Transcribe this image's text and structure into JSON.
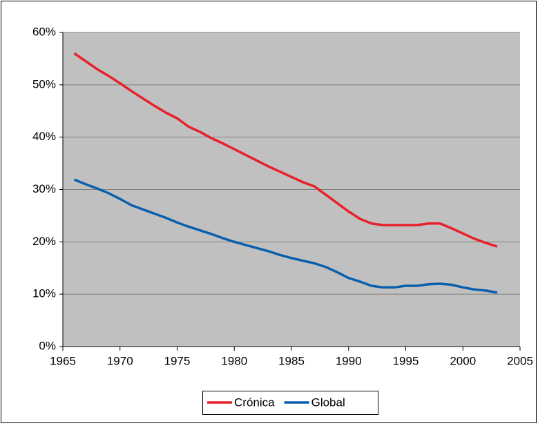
{
  "chart_data": {
    "type": "line",
    "x": [
      1966,
      1967,
      1968,
      1969,
      1970,
      1971,
      1972,
      1973,
      1974,
      1975,
      1976,
      1977,
      1978,
      1979,
      1980,
      1981,
      1982,
      1983,
      1984,
      1985,
      1986,
      1987,
      1988,
      1989,
      1990,
      1991,
      1992,
      1993,
      1994,
      1995,
      1996,
      1997,
      1998,
      1999,
      2000,
      2001,
      2002,
      2003
    ],
    "series": [
      {
        "name": "Crónica",
        "color": "#e8202a",
        "values": [
          56,
          54.5,
          53,
          51.7,
          50.3,
          48.8,
          47.4,
          46,
          44.7,
          43.6,
          42,
          41,
          39.8,
          38.8,
          37.7,
          36.6,
          35.5,
          34.4,
          33.4,
          32.4,
          31.4,
          30.6,
          29,
          27.4,
          25.8,
          24.4,
          23.5,
          23.2,
          23.2,
          23.2,
          23.2,
          23.5,
          23.5,
          22.6,
          21.6,
          20.6,
          19.8,
          19.1
        ]
      },
      {
        "name": "Global",
        "color": "#0a5fad",
        "values": [
          31.9,
          31,
          30.2,
          29.3,
          28.2,
          27,
          26.2,
          25.4,
          24.6,
          23.7,
          22.9,
          22.2,
          21.5,
          20.7,
          20,
          19.4,
          18.8,
          18.2,
          17.5,
          16.9,
          16.4,
          15.9,
          15.2,
          14.2,
          13.1,
          12.4,
          11.6,
          11.3,
          11.3,
          11.6,
          11.6,
          11.9,
          12,
          11.8,
          11.3,
          10.9,
          10.7,
          10.3
        ]
      }
    ],
    "xlim": [
      1965,
      2005
    ],
    "xticks": [
      1965,
      1970,
      1975,
      1980,
      1985,
      1990,
      1995,
      2000,
      2005
    ],
    "ylim": [
      0,
      60
    ],
    "yticks": [
      {
        "value": 0,
        "label": "0%"
      },
      {
        "value": 10,
        "label": "10%"
      },
      {
        "value": 20,
        "label": "20%"
      },
      {
        "value": 30,
        "label": "30%"
      },
      {
        "value": 40,
        "label": "40%"
      },
      {
        "value": 50,
        "label": "50%"
      },
      {
        "value": 60,
        "label": "60%"
      }
    ],
    "grid": true,
    "legend": "bottom"
  }
}
